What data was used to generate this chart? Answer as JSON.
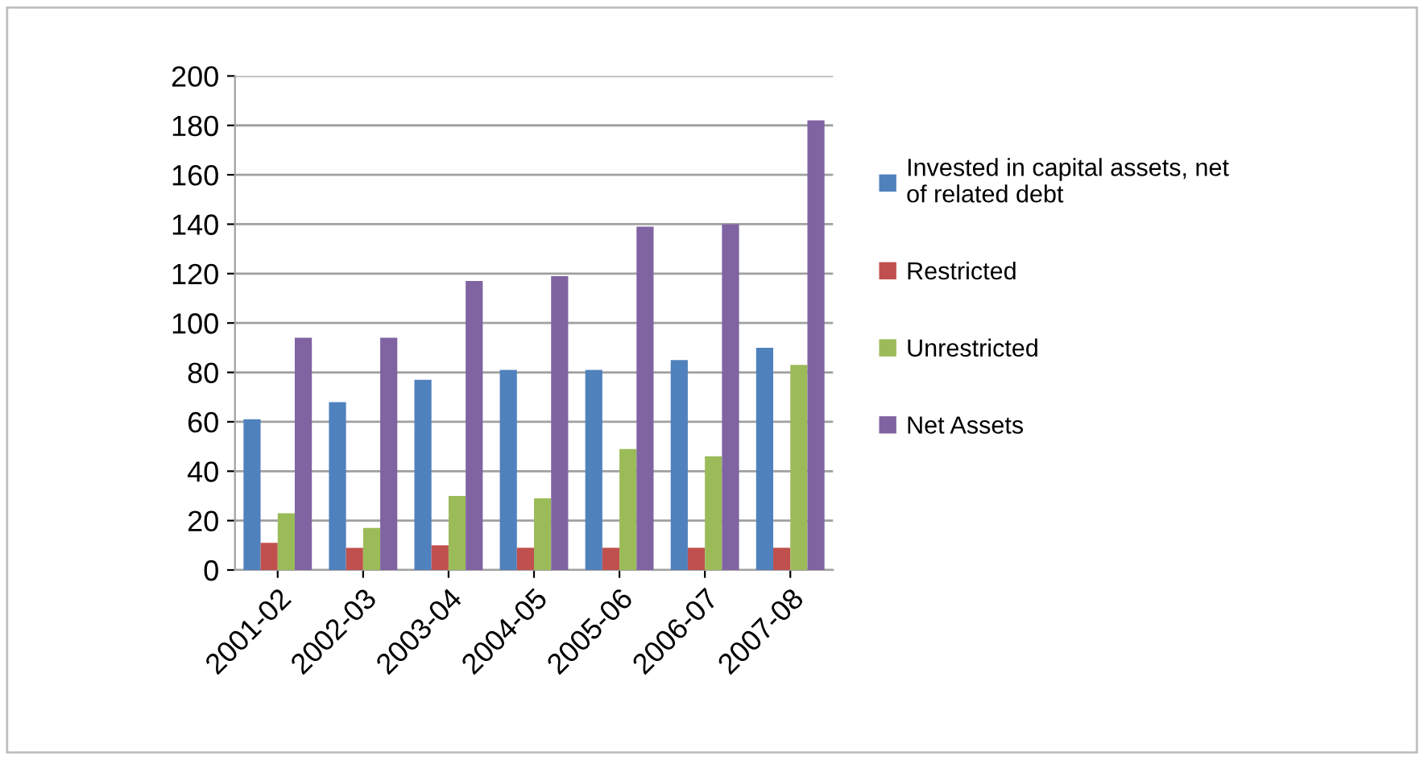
{
  "chart_data": {
    "type": "bar",
    "categories": [
      "2001-02",
      "2002-03",
      "2003-04",
      "2004-05",
      "2005-06",
      "2006-07",
      "2007-08"
    ],
    "series": [
      {
        "name": "Invested in capital assets, net of related debt",
        "color": "#4f81bd",
        "values": [
          61,
          68,
          77,
          81,
          81,
          85,
          90
        ]
      },
      {
        "name": "Restricted",
        "color": "#c0504d",
        "values": [
          11,
          9,
          10,
          9,
          9,
          9,
          9
        ]
      },
      {
        "name": "Unrestricted",
        "color": "#9bbb59",
        "values": [
          23,
          17,
          30,
          29,
          49,
          46,
          83
        ]
      },
      {
        "name": "Net Assets",
        "color": "#8064a2",
        "values": [
          94,
          94,
          117,
          119,
          139,
          140,
          182
        ]
      }
    ],
    "ylim": [
      0,
      200
    ],
    "yticks": [
      0,
      20,
      40,
      60,
      80,
      100,
      120,
      140,
      160,
      180,
      200
    ],
    "grid": "y",
    "legend": "right"
  }
}
